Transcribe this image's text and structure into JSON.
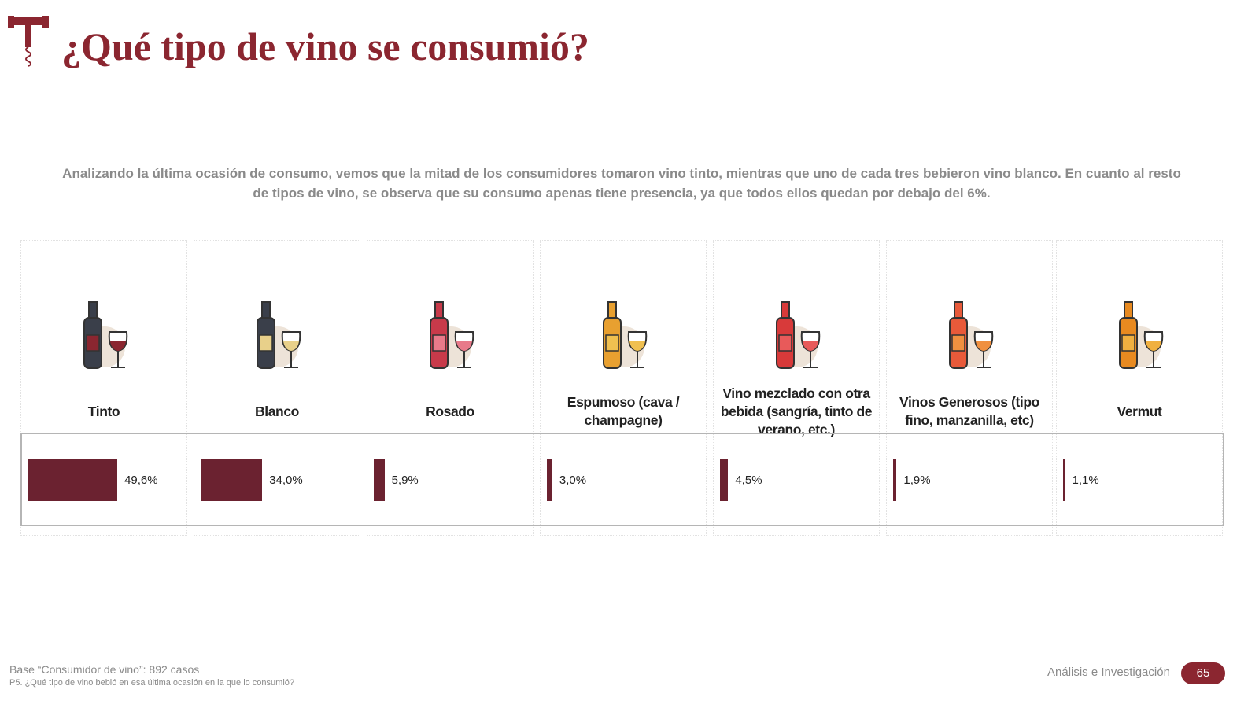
{
  "header": {
    "title": "¿Qué tipo de vino se consumió?",
    "logo_icon": "corkscrew-icon"
  },
  "intro": "Analizando la última ocasión de consumo, vemos que la mitad de los consumidores tomaron vino tinto, mientras que uno de cada tres bebieron vino blanco. En cuanto al resto de tipos de vino, se observa que su consumo  apenas tiene presencia, ya que todos ellos quedan por debajo del 6%.",
  "colors": {
    "accent": "#8b2630",
    "bar": "#6b2230"
  },
  "chart_data": {
    "type": "bar",
    "categories": [
      "Tinto",
      "Blanco",
      "Rosado",
      "Espumoso (cava / champagne)",
      "Vino mezclado con otra bebida (sangría, tinto de verano, etc.)",
      "Vinos Generosos  (tipo fino, manzanilla, etc)",
      "Vermut"
    ],
    "values": [
      49.6,
      34.0,
      5.9,
      3.0,
      4.5,
      1.9,
      1.1
    ],
    "labels": [
      "49,6%",
      "34,0%",
      "5,9%",
      "3,0%",
      "4,5%",
      "1,9%",
      "1,1%"
    ],
    "icons": [
      "red-wine-bottle-glass-icon",
      "white-wine-bottle-glass-icon",
      "rose-wine-bottle-glass-icon",
      "sparkling-wine-icon",
      "sangria-jug-icon",
      "fortified-wine-bottles-icon",
      "vermouth-icon"
    ],
    "unit": "%"
  },
  "footer": {
    "base": "Base “Consumidor de vino”: 892 casos",
    "question": "P5. ¿Qué tipo de vino bebió en esa última ocasión en la que lo consumió?",
    "brand": "Análisis e Investigación",
    "page": "65"
  }
}
